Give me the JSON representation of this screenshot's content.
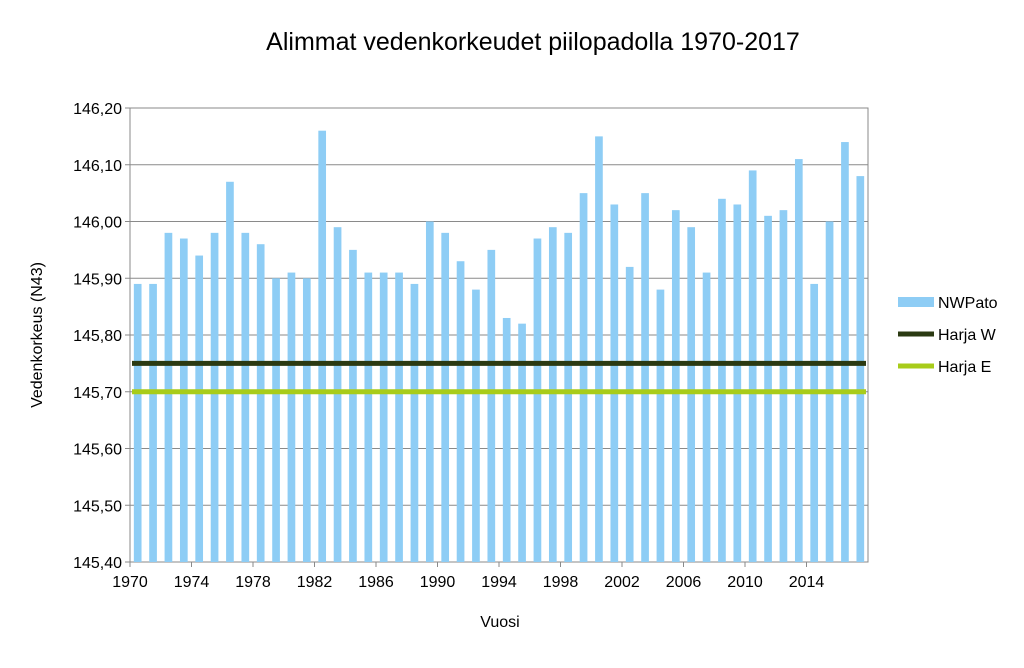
{
  "chart_data": {
    "type": "bar",
    "title": "Alimmat vedenkorkeudet piilopadolla 1970-2017",
    "xlabel": "Vuosi",
    "ylabel": "Vedenkorkeus (N43)",
    "ylim": [
      145.4,
      146.2
    ],
    "yticks": [
      "145,40",
      "145,50",
      "145,60",
      "145,70",
      "145,80",
      "145,90",
      "146,00",
      "146,10",
      "146,20"
    ],
    "x_tick_labels": [
      "1970",
      "1974",
      "1978",
      "1982",
      "1986",
      "1990",
      "1994",
      "1998",
      "2002",
      "2006",
      "2010",
      "2014"
    ],
    "grid": "horizontal",
    "legend_position": "right",
    "categories": [
      1970,
      1971,
      1972,
      1973,
      1974,
      1975,
      1976,
      1977,
      1978,
      1979,
      1980,
      1981,
      1982,
      1983,
      1984,
      1985,
      1986,
      1987,
      1988,
      1989,
      1990,
      1991,
      1992,
      1993,
      1994,
      1995,
      1996,
      1997,
      1998,
      1999,
      2000,
      2001,
      2002,
      2003,
      2004,
      2005,
      2006,
      2007,
      2008,
      2009,
      2010,
      2011,
      2012,
      2013,
      2014,
      2015,
      2016,
      2017
    ],
    "series": [
      {
        "name": "NWPato",
        "type": "bar",
        "color": "#8ecdf5",
        "values": [
          145.89,
          145.89,
          145.98,
          145.97,
          145.94,
          145.98,
          146.07,
          145.98,
          145.96,
          145.9,
          145.91,
          145.9,
          146.16,
          145.99,
          145.95,
          145.91,
          145.91,
          145.91,
          145.89,
          146.0,
          145.98,
          145.93,
          145.88,
          145.95,
          145.83,
          145.82,
          145.97,
          145.99,
          145.98,
          146.05,
          146.15,
          146.03,
          145.92,
          146.05,
          145.88,
          146.02,
          145.99,
          145.91,
          146.04,
          146.03,
          146.09,
          146.01,
          146.02,
          146.11,
          145.89,
          146.0,
          146.14,
          146.08
        ]
      },
      {
        "name": "Harja W",
        "type": "line",
        "color": "#2b3a12",
        "value": 145.75
      },
      {
        "name": "Harja E",
        "type": "line",
        "color": "#a8cc1a",
        "value": 145.7
      }
    ]
  }
}
